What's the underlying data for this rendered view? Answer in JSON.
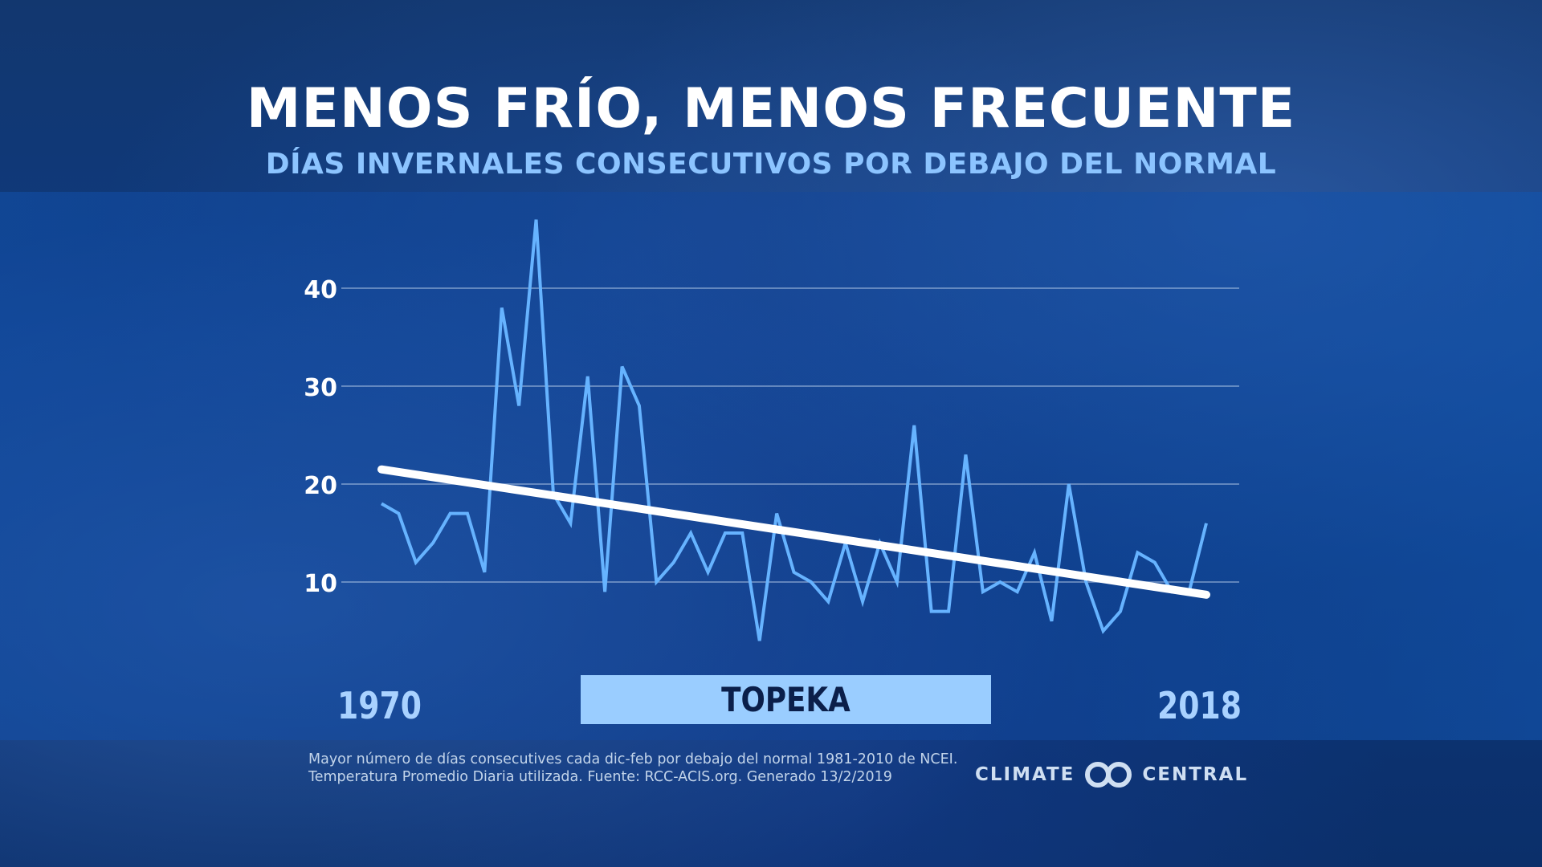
{
  "header": {
    "title": "MENOS FRÍO, MENOS FRECUENTE",
    "subtitle": "DÍAS INVERNALES CONSECUTIVOS POR DEBAJO DEL NORMAL"
  },
  "chart_data": {
    "type": "line",
    "x": [
      1970,
      1971,
      1972,
      1973,
      1974,
      1975,
      1976,
      1977,
      1978,
      1979,
      1980,
      1981,
      1982,
      1983,
      1984,
      1985,
      1986,
      1987,
      1988,
      1989,
      1990,
      1991,
      1992,
      1993,
      1994,
      1995,
      1996,
      1997,
      1998,
      1999,
      2000,
      2001,
      2002,
      2003,
      2004,
      2005,
      2006,
      2007,
      2008,
      2009,
      2010,
      2011,
      2012,
      2013,
      2014,
      2015,
      2016,
      2017,
      2018
    ],
    "series": [
      {
        "values": [
          18,
          17,
          12,
          14,
          17,
          17,
          11,
          38,
          28,
          47,
          19,
          16,
          31,
          9,
          32,
          28,
          10,
          12,
          15,
          11,
          15,
          15,
          4,
          17,
          11,
          10,
          8,
          14,
          8,
          14,
          10,
          26,
          7,
          7,
          23,
          9,
          10,
          9,
          13,
          6,
          20,
          10,
          5,
          7,
          13,
          12,
          9,
          9,
          16
        ],
        "color": "#66b3ff"
      }
    ],
    "trend": {
      "start": [
        1970,
        21.5
      ],
      "end": [
        2018,
        8.7
      ],
      "color": "#ffffff"
    },
    "y_ticks": [
      10,
      20,
      30,
      40
    ],
    "ylim": [
      0,
      48
    ],
    "xlim": [
      1970,
      2018
    ],
    "grid": true,
    "x_labels": {
      "start": "1970",
      "end": "2018"
    },
    "location_label": "TOPEKA"
  },
  "footer": {
    "note_line1": "Mayor número de días consecutives cada dic-feb por debajo del normal 1981-2010 de NCEI.",
    "note_line2": "Temperatura Promedio Diaria utilizada. Fuente: RCC-ACIS.org. Generado 13/2/2019",
    "logo_left": "CLIMATE",
    "logo_right": "CENTRAL"
  }
}
